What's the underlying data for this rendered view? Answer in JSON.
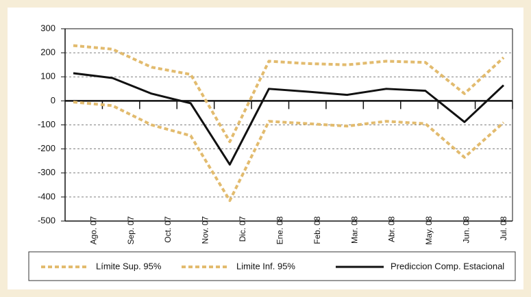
{
  "chart_data": {
    "type": "line",
    "categories": [
      "Ago. 07",
      "Sep. 07",
      "Oct. 07",
      "Nov. 07",
      "Dic. 07",
      "Ene. 08",
      "Feb. 08",
      "Mar. 08",
      "Abr. 08",
      "May. 08",
      "Jun. 08",
      "Jul. 08"
    ],
    "series": [
      {
        "name": "Límite Sup. 95%",
        "color": "#e2bb6e",
        "dashed": true,
        "values": [
          230,
          215,
          140,
          110,
          -170,
          165,
          155,
          150,
          165,
          160,
          30,
          180
        ]
      },
      {
        "name": "Limite Inf. 95%",
        "color": "#e2bb6e",
        "dashed": true,
        "values": [
          -5,
          -20,
          -100,
          -145,
          -415,
          -85,
          -95,
          -105,
          -85,
          -95,
          -235,
          -90
        ]
      },
      {
        "name": "Prediccion Comp. Estacional",
        "color": "#111111",
        "dashed": false,
        "values": [
          115,
          95,
          30,
          -10,
          -265,
          50,
          38,
          25,
          50,
          42,
          -88,
          65
        ]
      }
    ],
    "ylim": [
      -500,
      300
    ],
    "yticks": [
      300,
      200,
      100,
      0,
      -100,
      -200,
      -300,
      -400,
      -500
    ],
    "grid": true
  }
}
